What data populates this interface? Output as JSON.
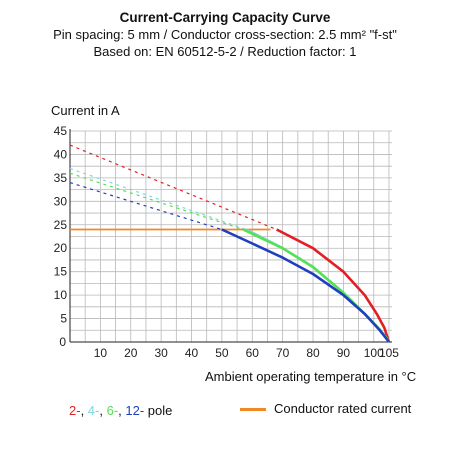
{
  "header": {
    "title": "Current-Carrying Capacity Curve",
    "line2": "Pin spacing: 5 mm / Conductor cross-section: 2.5 mm² \"f-st\"",
    "line3": "Based on: EN 60512-5-2 / Reduction factor: 1"
  },
  "legend": {
    "poles": [
      {
        "text": "2-",
        "color": "#e31e24"
      },
      {
        "text": ", ",
        "color": "#111111"
      },
      {
        "text": "4-",
        "color": "#7fd6e0"
      },
      {
        "text": ", ",
        "color": "#111111"
      },
      {
        "text": "6-",
        "color": "#55e055"
      },
      {
        "text": ", ",
        "color": "#111111"
      },
      {
        "text": "12-",
        "color": "#1f3fbf"
      },
      {
        "text": " pole",
        "color": "#111111"
      }
    ],
    "rated_label": "Conductor rated current",
    "rated_color": "#f08a24"
  },
  "chart_data": {
    "type": "line",
    "title": "Current-Carrying Capacity Curve",
    "xlabel": "Ambient operating temperature in °C",
    "ylabel": "Current in A",
    "xlim": [
      0,
      106
    ],
    "ylim": [
      0,
      45
    ],
    "xticks": [
      10,
      20,
      30,
      40,
      50,
      60,
      70,
      80,
      90,
      100,
      105
    ],
    "yticks": [
      5,
      10,
      15,
      20,
      25,
      30,
      35,
      40,
      45
    ],
    "grid": true,
    "legend_position": "bottom",
    "series": [
      {
        "name": "2-",
        "color": "#e31e24",
        "dashed": [
          [
            0,
            42
          ],
          [
            68,
            24
          ]
        ],
        "solid": [
          [
            68,
            24
          ],
          [
            80,
            20
          ],
          [
            90,
            15
          ],
          [
            97,
            10
          ],
          [
            101,
            6
          ],
          [
            103.5,
            3
          ],
          [
            104.5,
            1
          ],
          [
            105,
            0
          ]
        ]
      },
      {
        "name": "4-",
        "color": "#7fd6e0",
        "dashed": [
          [
            0,
            37
          ],
          [
            58,
            24
          ]
        ],
        "solid": [
          [
            58,
            24
          ],
          [
            70,
            20
          ],
          [
            80,
            16
          ],
          [
            90,
            10.5
          ],
          [
            97,
            6
          ],
          [
            101.5,
            3
          ],
          [
            104,
            1
          ],
          [
            105,
            0
          ]
        ]
      },
      {
        "name": "6-",
        "color": "#55e055",
        "dashed": [
          [
            0,
            36
          ],
          [
            57,
            24
          ]
        ],
        "solid": [
          [
            57,
            24
          ],
          [
            70,
            20
          ],
          [
            80,
            16
          ],
          [
            90,
            10.5
          ],
          [
            97,
            6
          ],
          [
            101.5,
            3
          ],
          [
            104,
            1
          ],
          [
            105,
            0
          ]
        ]
      },
      {
        "name": "12-",
        "color": "#1f3fbf",
        "dashed": [
          [
            0,
            34
          ],
          [
            50,
            24
          ]
        ],
        "solid": [
          [
            50,
            24
          ],
          [
            60,
            21
          ],
          [
            70,
            18
          ],
          [
            80,
            14.5
          ],
          [
            90,
            10
          ],
          [
            97,
            6
          ],
          [
            102,
            2.5
          ],
          [
            105,
            0
          ]
        ]
      }
    ],
    "rated_current": {
      "color": "#f08a24",
      "value": 24,
      "from": 0,
      "to": 66
    }
  }
}
